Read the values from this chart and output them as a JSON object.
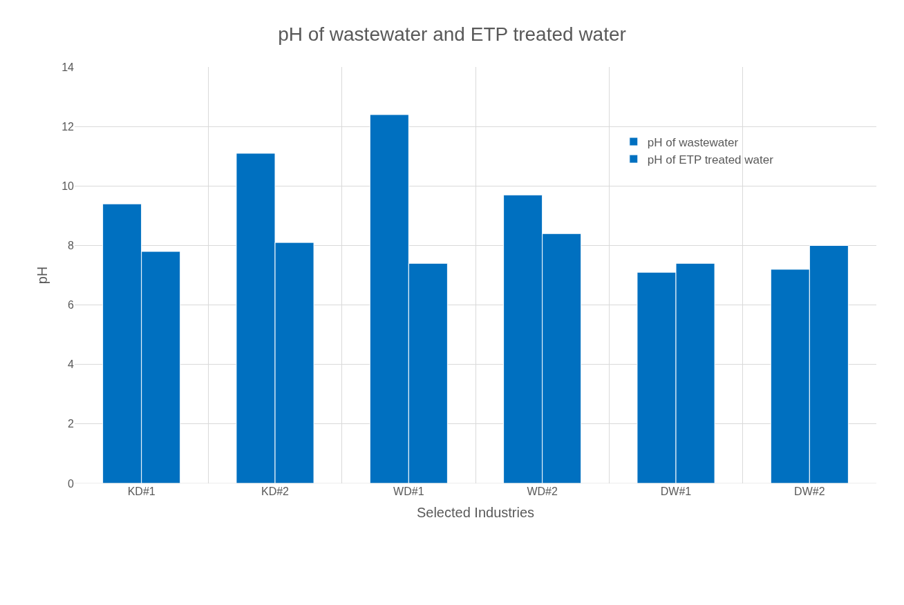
{
  "chart_data": {
    "type": "bar",
    "title": "pH of wastewater and ETP treated water",
    "xlabel": "Selected Industries",
    "ylabel": "pH",
    "categories": [
      "KD#1",
      "KD#2",
      "WD#1",
      "WD#2",
      "DW#1",
      "DW#2"
    ],
    "series": [
      {
        "name": "pH of wastewater",
        "color": "#0070c0",
        "values": [
          9.4,
          11.1,
          12.4,
          9.7,
          7.1,
          7.2
        ]
      },
      {
        "name": "pH of ETP treated water",
        "color": "#0070c0",
        "values": [
          7.8,
          8.1,
          7.4,
          8.4,
          7.4,
          8.0
        ]
      }
    ],
    "ylim": [
      0,
      14
    ],
    "yticks": [
      0,
      2,
      4,
      6,
      8,
      10,
      12,
      14
    ],
    "grid": true,
    "legend": "top right"
  }
}
